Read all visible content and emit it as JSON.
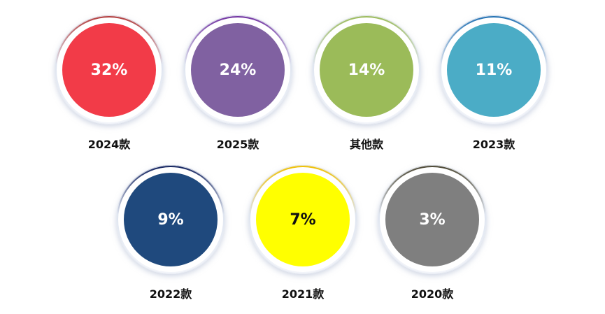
{
  "chart_data": {
    "type": "pie",
    "categories": [
      "2024款",
      "2025款",
      "其他款",
      "2023款",
      "2022款",
      "2021款",
      "2020款"
    ],
    "values": [
      32,
      24,
      14,
      11,
      9,
      7,
      3
    ],
    "value_labels": [
      "32%",
      "24%",
      "14%",
      "11%",
      "9%",
      "7%",
      "3%"
    ],
    "colors": [
      "#F23B48",
      "#8061A1",
      "#9BBB59",
      "#4BACC6",
      "#1F497D",
      "#FFFF00",
      "#7F7F7F"
    ],
    "ring_accents": [
      "#B23A3A",
      "#7030A0",
      "#9BBB59",
      "#1F6FB2",
      "#0F1F5C",
      "#F0C000",
      "#4A4530"
    ],
    "text_colors": [
      "#ffffff",
      "#ffffff",
      "#ffffff",
      "#ffffff",
      "#ffffff",
      "#111111",
      "#ffffff"
    ]
  }
}
